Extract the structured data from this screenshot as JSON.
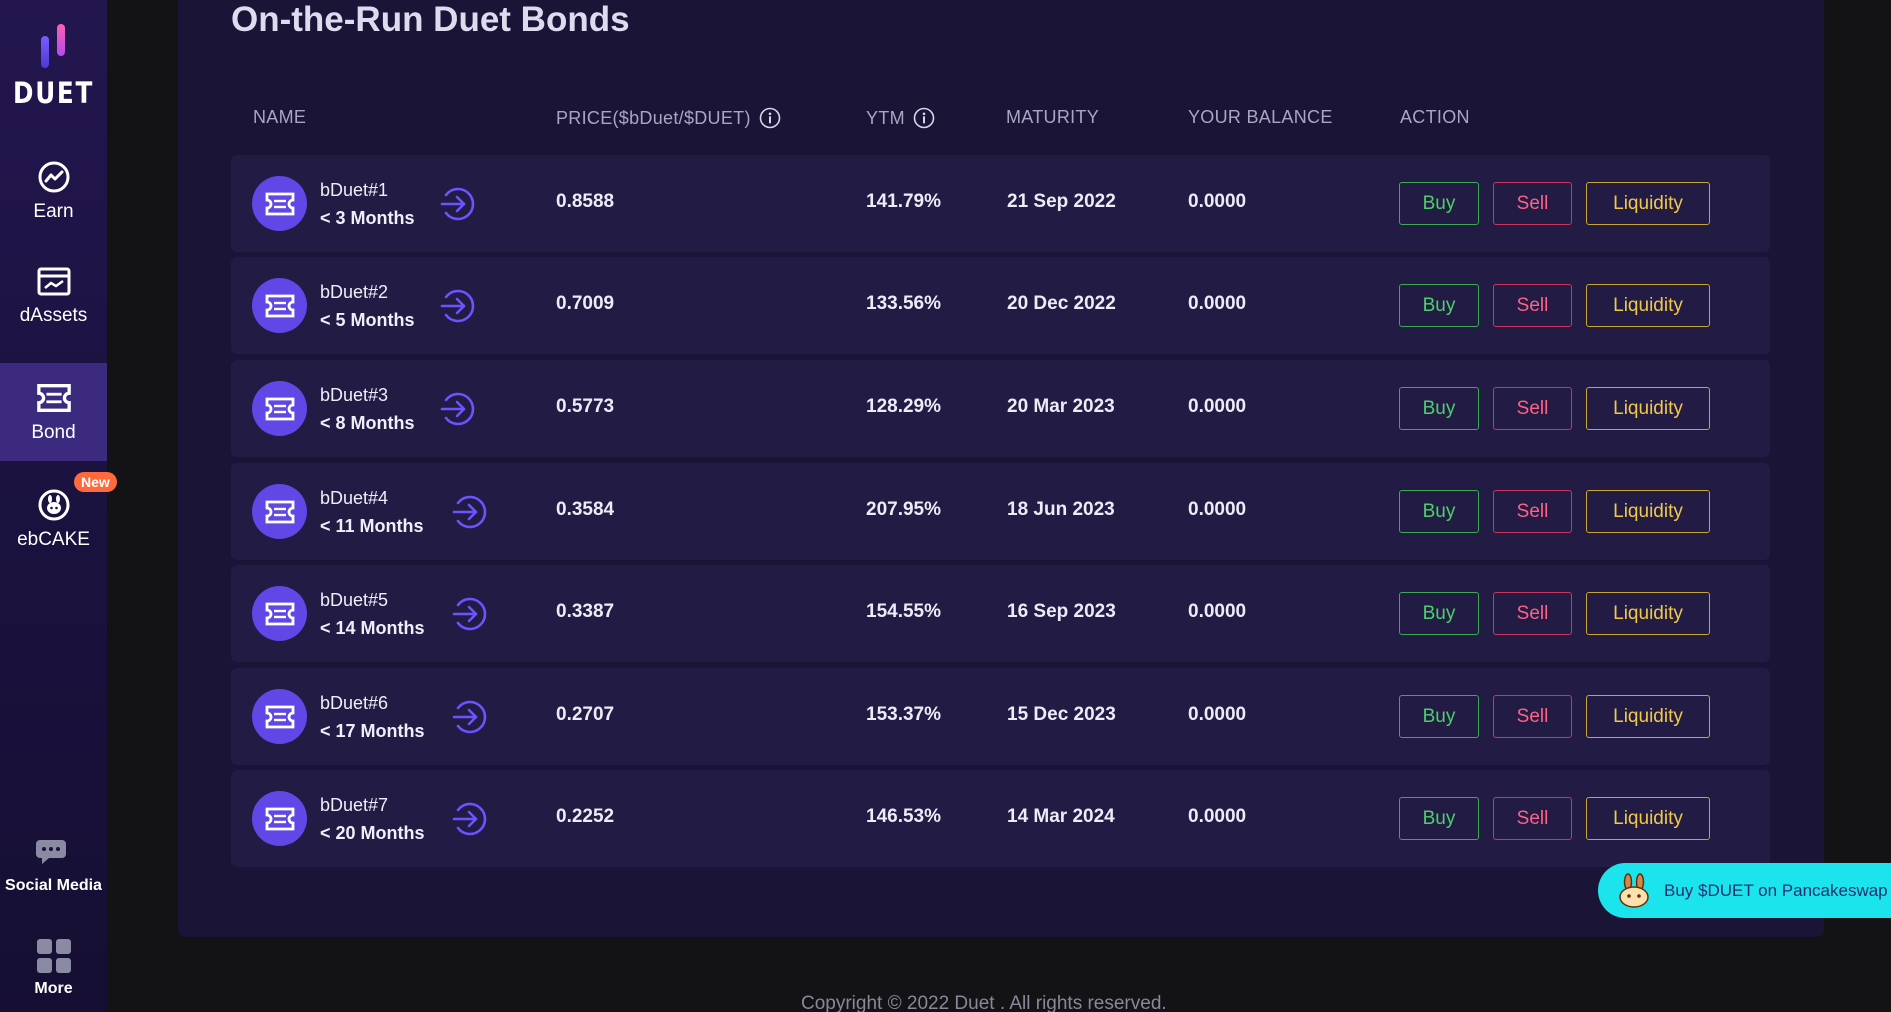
{
  "sidebar": {
    "logo_text": "DUET",
    "items": [
      {
        "label": "Earn",
        "icon": "trend-up-icon"
      },
      {
        "label": "dAssets",
        "icon": "assets-icon"
      },
      {
        "label": "Bond",
        "icon": "bond-ticket-icon",
        "active": true
      },
      {
        "label": "ebCAKE",
        "icon": "cake-icon",
        "badge": "New"
      }
    ],
    "bottom_items": [
      {
        "label": "Social Media",
        "icon": "chat-icon"
      },
      {
        "label": "More",
        "icon": "grid-icon"
      }
    ]
  },
  "main": {
    "title": "On-the-Run Duet Bonds",
    "columns": {
      "name": "NAME",
      "price": "PRICE($bDuet/$DUET)",
      "ytm": "YTM",
      "maturity": "MATURITY",
      "balance": "YOUR BALANCE",
      "action": "ACTION"
    },
    "actions": {
      "buy": "Buy",
      "sell": "Sell",
      "liquidity": "Liquidity"
    },
    "rows": [
      {
        "name": "bDuet#1",
        "term": "< 3 Months",
        "price": "0.8588",
        "ytm": "141.79%",
        "maturity": "21 Sep 2022",
        "balance": "0.0000"
      },
      {
        "name": "bDuet#2",
        "term": "< 5 Months",
        "price": "0.7009",
        "ytm": "133.56%",
        "maturity": "20 Dec 2022",
        "balance": "0.0000"
      },
      {
        "name": "bDuet#3",
        "term": "< 8 Months",
        "price": "0.5773",
        "ytm": "128.29%",
        "maturity": "20 Mar 2023",
        "balance": "0.0000"
      },
      {
        "name": "bDuet#4",
        "term": "< 11 Months",
        "price": "0.3584",
        "ytm": "207.95%",
        "maturity": "18 Jun 2023",
        "balance": "0.0000"
      },
      {
        "name": "bDuet#5",
        "term": "< 14 Months",
        "price": "0.3387",
        "ytm": "154.55%",
        "maturity": "16 Sep 2023",
        "balance": "0.0000"
      },
      {
        "name": "bDuet#6",
        "term": "< 17 Months",
        "price": "0.2707",
        "ytm": "153.37%",
        "maturity": "15 Dec 2023",
        "balance": "0.0000"
      },
      {
        "name": "bDuet#7",
        "term": "< 20 Months",
        "price": "0.2252",
        "ytm": "146.53%",
        "maturity": "14 Mar 2024",
        "balance": "0.0000"
      }
    ]
  },
  "pancake_button": "Buy $DUET on Pancakeswap",
  "footer": {
    "copyright": "Copyright © 2022 Duet . All rights reserved."
  },
  "colors": {
    "accent": "#6047e6",
    "buy": "#4bd168",
    "sell": "#ff6286",
    "liquidity": "#f1c94a",
    "pancake_bg": "#1be4ec"
  }
}
